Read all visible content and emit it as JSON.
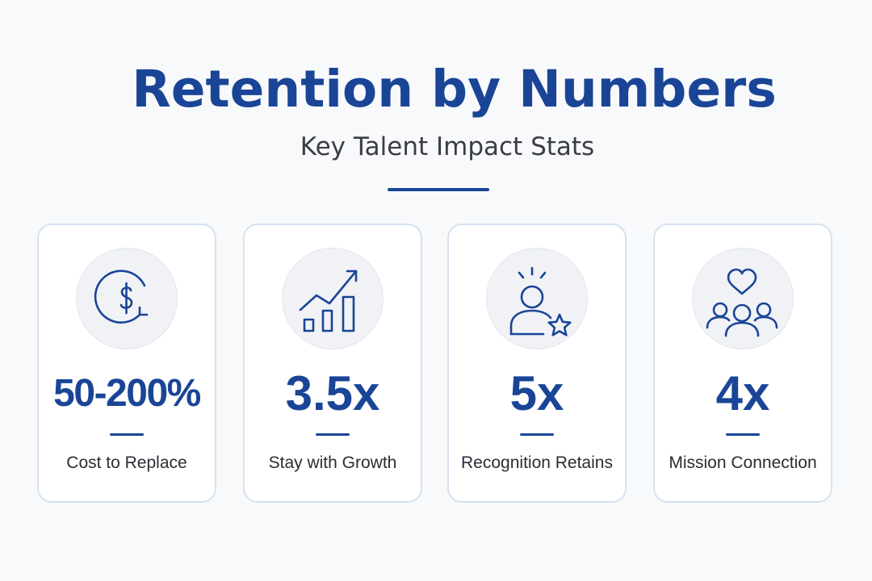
{
  "header": {
    "title": "Retention by Numbers",
    "subtitle": "Key Talent Impact Stats"
  },
  "colors": {
    "accent": "#1a4597",
    "card_border": "#d5e2f0",
    "icon_circle": "#f0f2f6",
    "background": "#f8f9fb"
  },
  "stats": [
    {
      "value": "50-200%",
      "label": "Cost to Replace",
      "icon": "dollar-cycle-icon"
    },
    {
      "value": "3.5x",
      "label": "Stay with Growth",
      "icon": "growth-chart-icon"
    },
    {
      "value": "5x",
      "label": "Recognition Retains",
      "icon": "person-star-icon"
    },
    {
      "value": "4x",
      "label": "Mission Connection",
      "icon": "team-heart-icon"
    }
  ]
}
